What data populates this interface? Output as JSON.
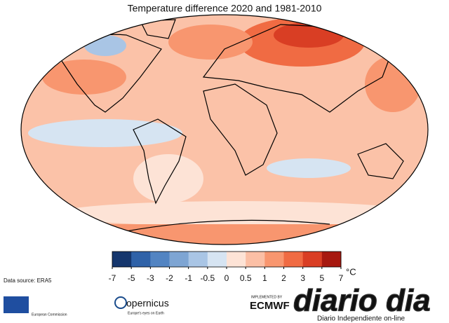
{
  "header": {
    "title": "Temperature difference 2020 and 1981-2010"
  },
  "colorbar": {
    "ticks": [
      -7,
      -5,
      -3,
      -2,
      -1,
      -0.5,
      0,
      0.5,
      1,
      2,
      3,
      5,
      7
    ],
    "colors": [
      "#15366d",
      "#2f62a8",
      "#5284c2",
      "#7ea5d3",
      "#a9c5e5",
      "#d6e4f2",
      "#fde3d6",
      "#fbbfa5",
      "#f8966f",
      "#f06b43",
      "#d93e24",
      "#a7180f"
    ],
    "unit": "°C"
  },
  "footer": {
    "source": "Data source: ERA5",
    "commission": "European Commission",
    "copernicus": "opernicus",
    "copernicus_tagline": "Europe's eyes on Earth",
    "implemented": "IMPLEMENTED BY",
    "ecmwf": "ECMWF",
    "watermark": "diario dia",
    "watermark_tagline": "Diario Independiente on-line"
  }
}
